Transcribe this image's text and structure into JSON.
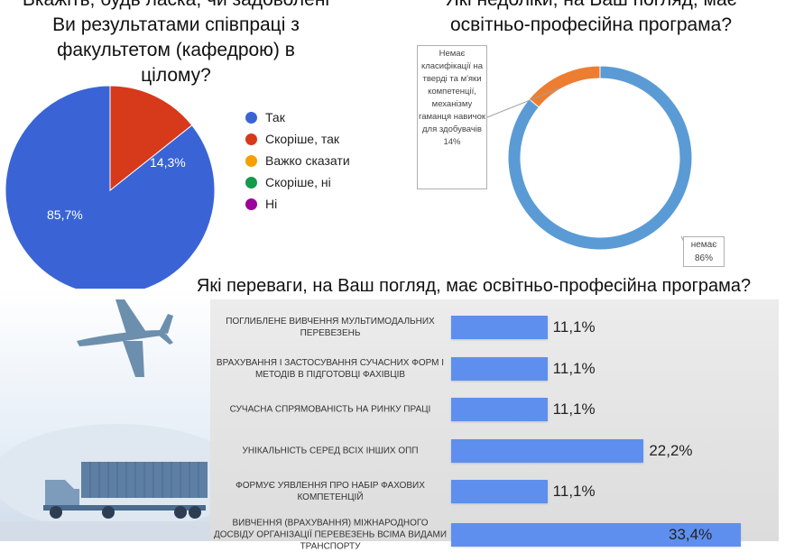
{
  "pie": {
    "title_lines": [
      "Вкажіть, будь ласка, чи задоволені",
      "Ви результатами співпраці з",
      "факультетом (кафедрою) в",
      "цілому?"
    ],
    "legend": [
      {
        "label": "Так",
        "color": "#3a64d6"
      },
      {
        "label": "Скоріше, так",
        "color": "#d7391b"
      },
      {
        "label": "Важко сказати",
        "color": "#f5a000"
      },
      {
        "label": "Скоріше, ні",
        "color": "#139a4a"
      },
      {
        "label": "Ні",
        "color": "#9a009a"
      }
    ],
    "slice_labels": [
      "85,7%",
      "14,3%"
    ]
  },
  "donut": {
    "title_lines": [
      "Які недоліки, на Ваш погляд, має",
      "освітньо-професійна програма?"
    ],
    "callout_orange": "Немає класифікації на тверді та м'яки компетенції, механізму гаманця навичок для здобувачів 14%",
    "callout_blue": "немає 86%"
  },
  "bars": {
    "title": "Які переваги, на Ваш погляд, має освітньо-професійна програма?"
  },
  "chart_data": [
    {
      "type": "pie",
      "categories": [
        "Так",
        "Скоріше, так",
        "Важко сказати",
        "Скоріше, ні",
        "Ні"
      ],
      "values": [
        85.7,
        14.3,
        0,
        0,
        0
      ],
      "colors": [
        "#3a64d6",
        "#d7391b",
        "#f5a000",
        "#139a4a",
        "#9a009a"
      ],
      "legend_position": "right"
    },
    {
      "type": "pie",
      "donut": true,
      "categories": [
        "Немає класифікації на тверді та м'яки компетенції, механізму гаманця навичок для здобувачів",
        "немає"
      ],
      "values": [
        14,
        86
      ],
      "colors": [
        "#ed7d31",
        "#5b9bd5"
      ]
    },
    {
      "type": "bar",
      "orientation": "horizontal",
      "categories": [
        "ПОГЛИБЛЕНЕ ВИВЧЕННЯ МУЛЬТИМОДАЛЬНИХ ПЕРЕВЕЗЕНЬ",
        "ВРАХУВАННЯ І ЗАСТОСУВАННЯ СУЧАСНИХ ФОРМ І МЕТОДІВ В ПІДГОТОВЦІ ФАХІВЦІВ",
        "СУЧАСНА СПРЯМОВАНІСТЬ НА РИНКУ ПРАЦІ",
        "УНІКАЛЬНІСТЬ СЕРЕД ВСІХ ІНШИХ ОПП",
        "ФОРМУЄ УЯВЛЕННЯ ПРО НАБІР ФАХОВИХ КОМПЕТЕНЦІЙ",
        "ВИВЧЕННЯ (ВРАХУВАННЯ) МІЖНАРОДНОГО ДОСВІДУ ОРГАНІЗАЦІЇ ПЕРЕВЕЗЕНЬ ВСІМА ВИДАМИ ТРАНСПОРТУ"
      ],
      "values": [
        11.1,
        11.1,
        11.1,
        22.2,
        11.1,
        33.4
      ],
      "value_labels": [
        "11,1%",
        "11,1%",
        "11,1%",
        "22,2%",
        "11,1%",
        "33,4%"
      ],
      "color": "#5f8fee"
    }
  ]
}
